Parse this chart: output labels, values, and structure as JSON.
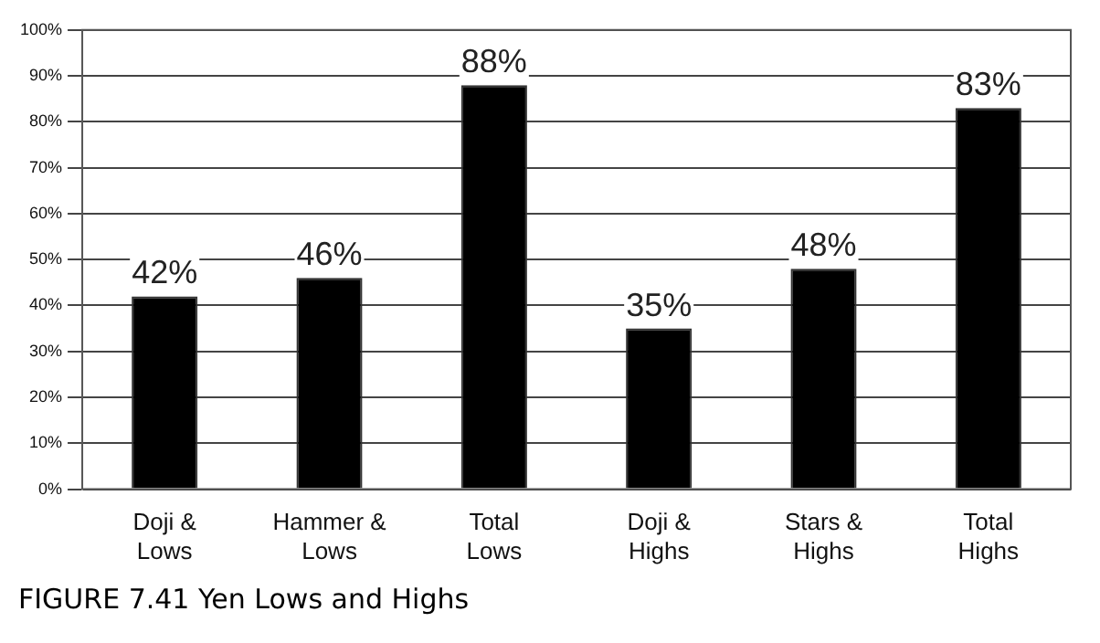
{
  "chart_data": {
    "type": "bar",
    "title": "FIGURE 7.41 Yen Lows and Highs",
    "categories": [
      "Doji & Lows",
      "Hammer & Lows",
      "Total Lows",
      "Doji & Highs",
      "Stars & Highs",
      "Total Highs"
    ],
    "values": [
      42,
      46,
      88,
      35,
      48,
      83
    ],
    "value_labels": [
      "42%",
      "46%",
      "88%",
      "35%",
      "48%",
      "83%"
    ],
    "color": "#000000",
    "ylim": [
      0,
      100
    ],
    "yticks": [
      {
        "value": 0,
        "label": "0%"
      },
      {
        "value": 10,
        "label": "10%"
      },
      {
        "value": 20,
        "label": "20%"
      },
      {
        "value": 30,
        "label": "30%"
      },
      {
        "value": 40,
        "label": "40%"
      },
      {
        "value": 50,
        "label": "50%"
      },
      {
        "value": 60,
        "label": "60%"
      },
      {
        "value": 70,
        "label": "70%"
      },
      {
        "value": 80,
        "label": "80%"
      },
      {
        "value": 90,
        "label": "90%"
      },
      {
        "value": 100,
        "label": "100%"
      }
    ],
    "grid": "y",
    "legend": false
  }
}
